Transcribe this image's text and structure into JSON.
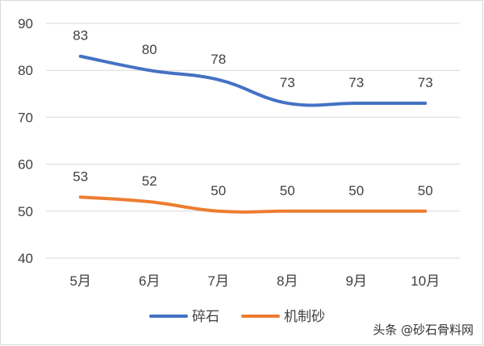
{
  "chart_data": {
    "type": "line",
    "categories": [
      "5月",
      "6月",
      "7月",
      "8月",
      "9月",
      "10月"
    ],
    "series": [
      {
        "name": "碎石",
        "color": "#4472C4",
        "values": [
          83,
          80,
          78,
          73,
          73,
          73
        ]
      },
      {
        "name": "机制砂",
        "color": "#ED7D31",
        "values": [
          53,
          52,
          50,
          50,
          50,
          50
        ]
      }
    ],
    "ylim": [
      40,
      90
    ],
    "yticks": [
      40,
      50,
      60,
      70,
      80,
      90
    ],
    "grid": true,
    "legend_position": "bottom",
    "data_labels": true
  },
  "watermark": "头条 @砂石骨料网"
}
